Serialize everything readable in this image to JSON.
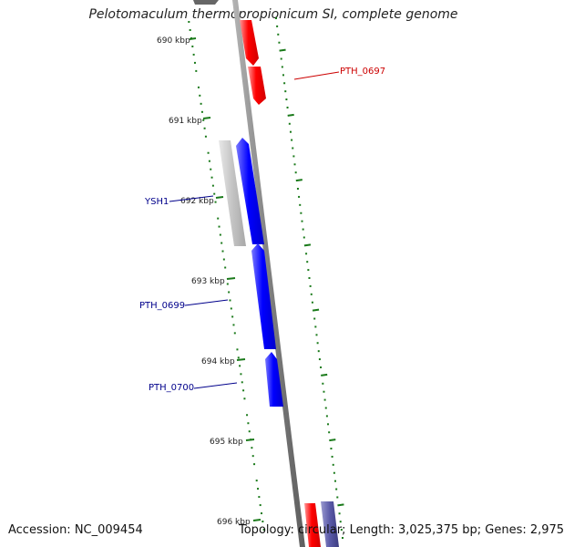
{
  "title": "Pelotomaculum thermopropionicum SI, complete genome",
  "footer": {
    "accession": "Accession: NC_009454",
    "summary": "Topology: circular; Length: 3,025,375 bp; Genes: 2,975"
  },
  "kbp_ticks": [
    {
      "label": "690 kbp"
    },
    {
      "label": "691 kbp"
    },
    {
      "label": "692 kbp"
    },
    {
      "label": "693 kbp"
    },
    {
      "label": "694 kbp"
    },
    {
      "label": "695 kbp"
    },
    {
      "label": "696 kbp"
    }
  ],
  "gene_labels": [
    {
      "text": "PTH_0697",
      "color": "#cc0000"
    },
    {
      "text": "YSH1",
      "color": "#00008b"
    },
    {
      "text": "PTH_0699",
      "color": "#00008b"
    },
    {
      "text": "PTH_0700",
      "color": "#00008b"
    }
  ],
  "colors": {
    "backbone": "#808080",
    "tick_marks": "#1a7a1a",
    "forward_gene_red": "#ff0000",
    "forward_gene_blue": "#0000ff",
    "grey_gene": "#c0c0c0",
    "purple_gene": "#5a5aa8"
  }
}
